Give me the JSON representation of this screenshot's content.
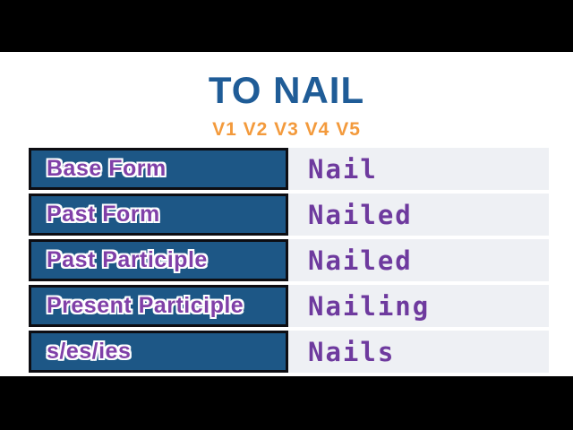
{
  "header": {
    "title": "TO NAIL",
    "subtitle": "V1 V2 V3 V4 V5",
    "title_color": "#1f5c97",
    "subtitle_color": "#f39a3c"
  },
  "table": {
    "label_bg": "#1d5786",
    "label_border": "#0d0d12",
    "label_color": "#8040a8",
    "value_bg": "#eef0f4",
    "value_color": "#6e3a9e",
    "rows": [
      {
        "label": "Base Form",
        "value": "Nail"
      },
      {
        "label": "Past Form",
        "value": "Nailed"
      },
      {
        "label": "Past Participle",
        "value": "Nailed"
      },
      {
        "label": "Present Participle",
        "value": "Nailing"
      },
      {
        "label": "s/es/ies",
        "value": "Nails"
      }
    ]
  },
  "letterbox_color": "#000000"
}
